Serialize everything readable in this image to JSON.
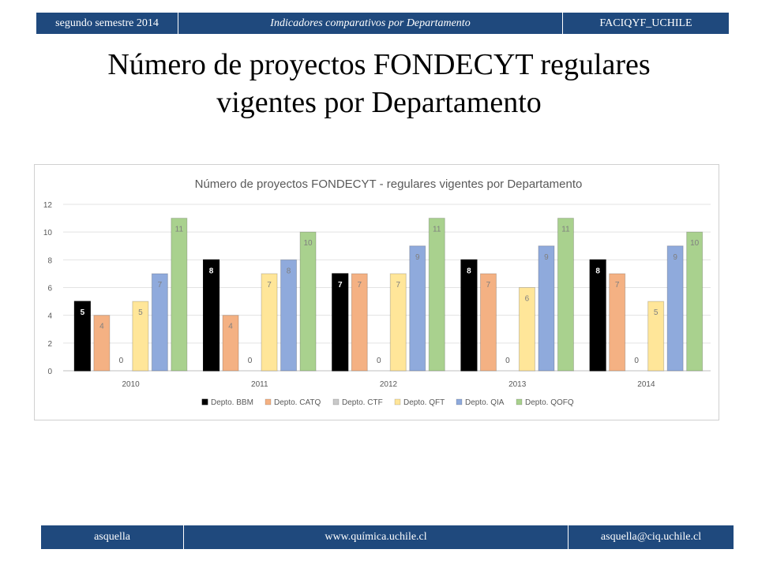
{
  "header": {
    "left": "segundo semestre 2014",
    "center": "Indicadores comparativos por Departamento",
    "right": "FACIQYF_UCHILE"
  },
  "slide": {
    "title_line1": "Número de proyectos FONDECYT regulares",
    "title_line2": "vigentes por Departamento"
  },
  "footer": {
    "left": "asquella",
    "center": "www.química.uchile.cl",
    "right": "asquella@ciq.uchile.cl"
  },
  "chart_data": {
    "type": "bar",
    "title": "Número de proyectos FONDECYT - regulares  vigentes por Departamento",
    "categories": [
      "2010",
      "2011",
      "2012",
      "2013",
      "2014"
    ],
    "ylim": [
      0,
      12
    ],
    "yticks": [
      0,
      2,
      4,
      6,
      8,
      10,
      12
    ],
    "grid": true,
    "legend_position": "bottom",
    "data_labels": true,
    "series": [
      {
        "name": "Depto. BBM",
        "color": "#000000",
        "values": [
          5,
          8,
          7,
          8,
          8
        ]
      },
      {
        "name": "Depto. CATQ",
        "color": "#f4b183",
        "values": [
          4,
          4,
          7,
          7,
          7
        ]
      },
      {
        "name": "Depto. CTF",
        "color": "#c9c9c9",
        "values": [
          0,
          0,
          0,
          0,
          0
        ]
      },
      {
        "name": "Depto. QFT",
        "color": "#ffe699",
        "values": [
          5,
          7,
          7,
          6,
          5
        ]
      },
      {
        "name": "Depto. QIA",
        "color": "#8faadc",
        "values": [
          7,
          8,
          9,
          9,
          9
        ]
      },
      {
        "name": "Depto. QOFQ",
        "color": "#a9d18e",
        "values": [
          11,
          10,
          11,
          11,
          10
        ]
      }
    ]
  }
}
